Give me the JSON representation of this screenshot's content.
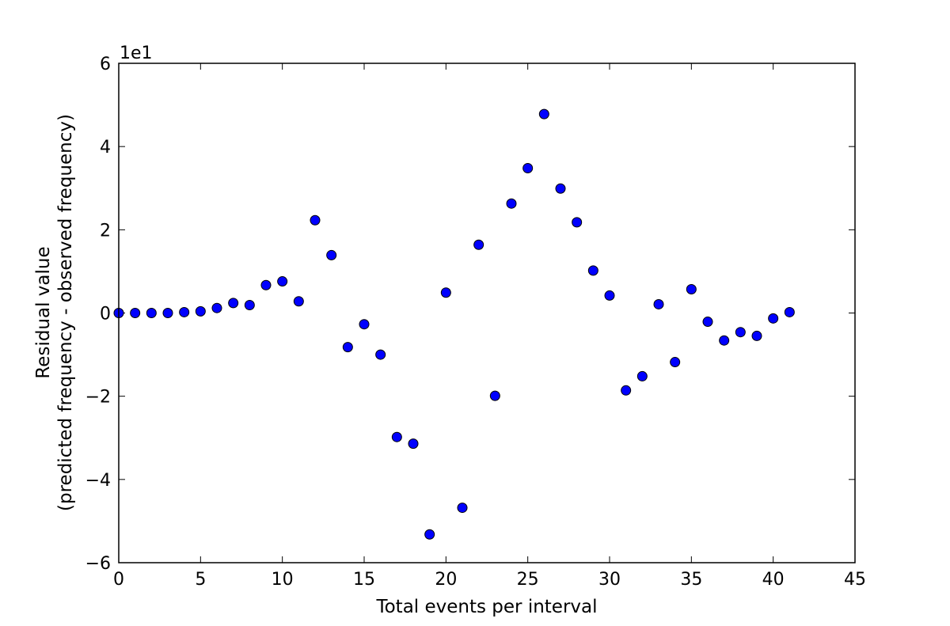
{
  "chart_data": {
    "type": "scatter",
    "title": "",
    "xlabel": "Total events per interval",
    "ylabel_lines": [
      "Residual value",
      "(predicted frequency - observed frequency)"
    ],
    "y_offset_label": "1e1",
    "xlim": [
      0,
      45
    ],
    "ylim": [
      -6,
      6
    ],
    "x_ticks": [
      0,
      5,
      10,
      15,
      20,
      25,
      30,
      35,
      40,
      45
    ],
    "y_ticks": [
      -6,
      -4,
      -2,
      0,
      2,
      4,
      6
    ],
    "x_tick_labels": [
      "0",
      "5",
      "10",
      "15",
      "20",
      "25",
      "30",
      "35",
      "40",
      "45"
    ],
    "y_tick_labels": [
      "−6",
      "−4",
      "−2",
      "0",
      "2",
      "4",
      "6"
    ],
    "grid": false,
    "marker_color": "#0000ff",
    "series": [
      {
        "x": [
          0,
          1,
          2,
          3,
          4,
          5,
          6,
          7,
          8,
          9,
          10,
          11,
          12,
          13,
          14,
          15,
          16,
          17,
          18,
          19,
          20,
          21,
          22,
          23,
          24,
          25,
          26,
          27,
          28,
          29,
          30,
          31,
          32,
          33,
          34,
          35,
          36,
          37,
          38,
          39,
          40,
          41
        ],
        "y": [
          0.0,
          0.0,
          0.0,
          0.0,
          0.02,
          0.04,
          0.12,
          0.24,
          0.19,
          0.67,
          0.76,
          0.28,
          2.23,
          1.39,
          -0.82,
          -0.27,
          -1.0,
          -2.98,
          -3.14,
          -5.32,
          0.49,
          -4.68,
          1.64,
          -1.99,
          2.63,
          3.48,
          4.78,
          2.99,
          2.18,
          1.02,
          0.42,
          -1.86,
          -1.52,
          0.21,
          -1.18,
          0.57,
          -0.21,
          -0.66,
          -0.46,
          -0.55,
          -0.13,
          0.02
        ]
      }
    ]
  }
}
